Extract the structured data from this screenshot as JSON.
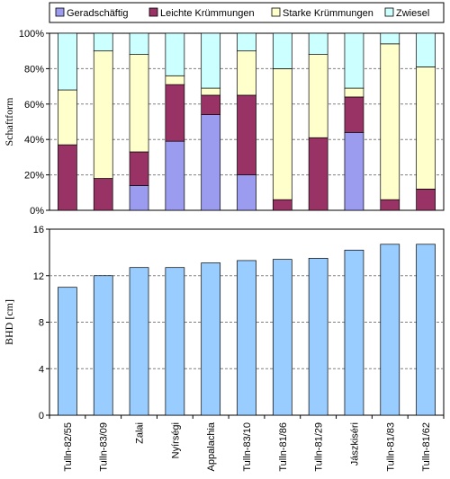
{
  "chart_data": [
    {
      "type": "bar",
      "stacked": true,
      "percent": true,
      "ylabel": "Schaftform",
      "ylim": [
        0,
        100
      ],
      "yticks": [
        "0%",
        "20%",
        "40%",
        "60%",
        "80%",
        "100%"
      ],
      "ytick_values": [
        0,
        20,
        40,
        60,
        80,
        100
      ],
      "grid": "horizontal dashed",
      "legend_position": "top",
      "categories": [
        "Tulln-82/55",
        "Tulln-83/09",
        "Zalai",
        "Nyírségi",
        "Appalachia",
        "Tulln-83/10",
        "Tulln-81/86",
        "Tulln-81/29",
        "Jászkiséri",
        "Tulln-81/83",
        "Tulln-81/62"
      ],
      "series": [
        {
          "name": "Geradschäftig",
          "color": "#9b9bf0",
          "values": [
            0,
            0,
            14,
            39,
            54,
            20,
            0,
            0,
            44,
            0,
            0
          ]
        },
        {
          "name": "Leichte Krümmungen",
          "color": "#993366",
          "values": [
            37,
            18,
            19,
            32,
            11,
            45,
            6,
            41,
            20,
            6,
            12
          ]
        },
        {
          "name": "Starke Krümmungen",
          "color": "#ffffcc",
          "values": [
            31,
            72,
            55,
            5,
            4,
            25,
            74,
            47,
            5,
            88,
            69
          ]
        },
        {
          "name": "Zwiesel",
          "color": "#ccffff",
          "values": [
            32,
            10,
            12,
            24,
            31,
            10,
            20,
            12,
            31,
            6,
            19
          ]
        }
      ]
    },
    {
      "type": "bar",
      "ylabel": "BHD [cm]",
      "ylim": [
        0,
        16
      ],
      "yticks": [
        "0",
        "4",
        "8",
        "12",
        "16"
      ],
      "ytick_values": [
        0,
        4,
        8,
        12,
        16
      ],
      "grid": "horizontal dashed",
      "color": "#99ccff",
      "categories": [
        "Tulln-82/55",
        "Tulln-83/09",
        "Zalai",
        "Nyírségi",
        "Appalachia",
        "Tulln-83/10",
        "Tulln-81/86",
        "Tulln-81/29",
        "Jászkiséri",
        "Tulln-81/83",
        "Tulln-81/62"
      ],
      "values": [
        11.0,
        12.0,
        12.7,
        12.7,
        13.1,
        13.3,
        13.4,
        13.5,
        14.2,
        14.7,
        14.7
      ]
    }
  ]
}
